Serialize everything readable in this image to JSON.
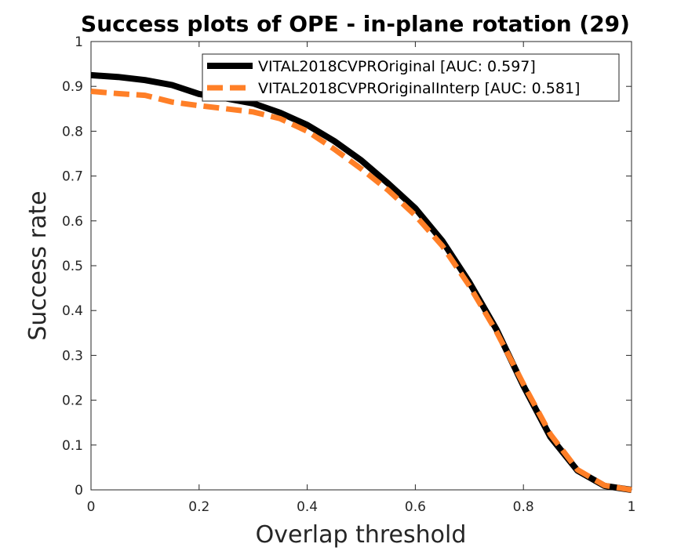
{
  "chart_data": {
    "type": "line",
    "title": "Success plots of OPE - in-plane rotation (29)",
    "xlabel": "Overlap threshold",
    "ylabel": "Success rate",
    "xlim": [
      0,
      1
    ],
    "ylim": [
      0,
      1
    ],
    "xticks": [
      "0",
      "0.2",
      "0.4",
      "0.6",
      "0.8",
      "1"
    ],
    "yticks": [
      "0",
      "0.1",
      "0.2",
      "0.3",
      "0.4",
      "0.5",
      "0.6",
      "0.7",
      "0.8",
      "0.9",
      "1"
    ],
    "x": [
      0,
      0.05,
      0.1,
      0.15,
      0.2,
      0.25,
      0.3,
      0.35,
      0.4,
      0.45,
      0.5,
      0.55,
      0.6,
      0.65,
      0.7,
      0.75,
      0.8,
      0.85,
      0.9,
      0.95,
      1.0
    ],
    "series": [
      {
        "name": "VITAL2018CVPROriginal [AUC: 0.597]",
        "color": "#000000",
        "style": "solid",
        "values": [
          0.925,
          0.921,
          0.914,
          0.903,
          0.883,
          0.873,
          0.862,
          0.841,
          0.814,
          0.778,
          0.735,
          0.683,
          0.628,
          0.555,
          0.463,
          0.358,
          0.232,
          0.118,
          0.043,
          0.009,
          0.0
        ]
      },
      {
        "name": "VITAL2018CVPROriginalInterp [AUC: 0.581]",
        "color": "#ff7f27",
        "style": "dashed",
        "values": [
          0.889,
          0.884,
          0.88,
          0.865,
          0.857,
          0.85,
          0.843,
          0.828,
          0.8,
          0.76,
          0.716,
          0.668,
          0.612,
          0.544,
          0.455,
          0.353,
          0.236,
          0.124,
          0.045,
          0.01,
          0.0
        ]
      }
    ],
    "legend_position": "top-right",
    "grid": false
  }
}
